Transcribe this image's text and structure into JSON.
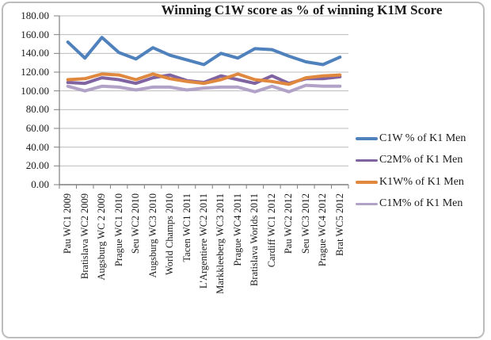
{
  "chart_data": {
    "type": "line",
    "title": "Winning C1W score as % of winning K1M Score",
    "categories": [
      "Pau WC1 2009",
      "Bratislava WC2 2009",
      "Augsburg WC 2 2009",
      "Prague WC1 2010",
      "Seu WC2 2010",
      "Augsburg WC3 2010",
      "World Champs 2010",
      "Tacen WC1 2011",
      "L'Argentiere WC2 2011",
      "Markkleeberg WC3 2011",
      "Prague WC4 2011",
      "Bratislava Worlds 2011",
      "Cardiff WC1 2012",
      "Pau WC2 2012",
      "Seu WC3 2012",
      "Prague WC4 2012",
      "Brat WC5 2012"
    ],
    "series": [
      {
        "name": "C1W % of K1 Men",
        "slug": "c1w",
        "color": "#4f81bd",
        "values": [
          152,
          135,
          157,
          141,
          134,
          146,
          138,
          133,
          128,
          140,
          135,
          145,
          144,
          137,
          131,
          128,
          136
        ]
      },
      {
        "name": "C2M% of K1 Men",
        "slug": "c2m",
        "color": "#8064a2",
        "values": [
          109,
          108,
          114,
          112,
          108,
          114,
          117,
          111,
          109,
          116,
          112,
          108,
          116,
          108,
          113,
          113,
          115
        ]
      },
      {
        "name": "K1W% of K1 Men",
        "slug": "k1w",
        "color": "#e0883d",
        "values": [
          112,
          113,
          118,
          117,
          112,
          118,
          113,
          110,
          108,
          112,
          118,
          112,
          110,
          107,
          114,
          116,
          117
        ]
      },
      {
        "name": "C1M% of K1 Men",
        "slug": "c1m",
        "color": "#b3a2c7",
        "values": [
          105,
          100,
          105,
          104,
          101,
          104,
          104,
          101,
          103,
          104,
          104,
          99,
          105,
          99,
          106,
          105,
          105
        ]
      }
    ],
    "y_axis": {
      "min": 0,
      "max": 180,
      "step": 20,
      "decimals": 2
    },
    "grid": "horizontal",
    "legend_position": "right",
    "line_markers": false
  },
  "styles": {
    "grid_color": "#bdbdbd",
    "axis_color": "#7f7f7f",
    "text_color": "#1a1a1a",
    "frame_border_color": "#bdbdbd",
    "background": "#ffffff"
  }
}
